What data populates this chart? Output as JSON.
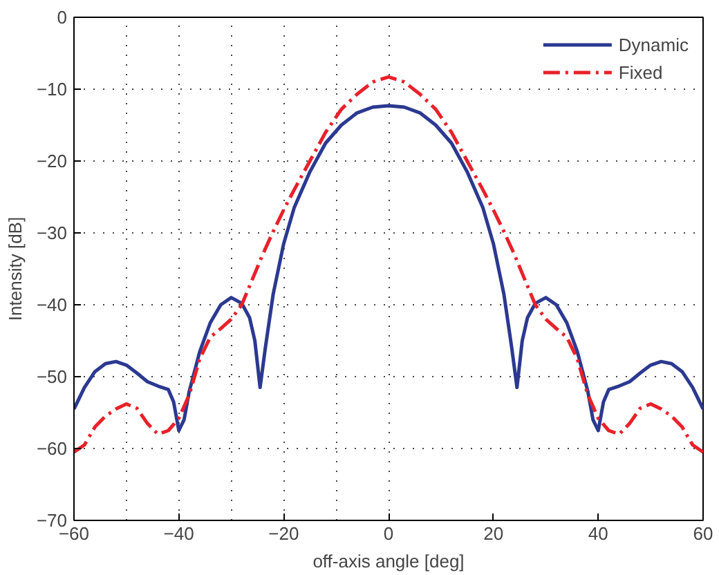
{
  "chart_data": {
    "type": "line",
    "xlabel": "off-axis angle [deg]",
    "ylabel": "Intensity [dB]",
    "xlim": [
      -60,
      60
    ],
    "xticks": [
      -60,
      -40,
      -20,
      0,
      20,
      40,
      60
    ],
    "ylim": [
      -70,
      0
    ],
    "yticks": [
      -70,
      -60,
      -50,
      -40,
      -30,
      -20,
      -10,
      0
    ],
    "grid": true,
    "legend": "top right",
    "marker": "none",
    "series": [
      {
        "name": "Dynamic",
        "color": "#2b3990",
        "line_style": "solid",
        "x": [
          -60,
          -58,
          -56,
          -54,
          -52,
          -50,
          -48,
          -46,
          -44,
          -42,
          -41,
          -40,
          -39,
          -38,
          -36,
          -34,
          -32,
          -30,
          -28,
          -26.5,
          -25.5,
          -24.5,
          -23.5,
          -22,
          -20,
          -18,
          -15,
          -12,
          -9,
          -6,
          -3,
          0,
          3,
          6,
          9,
          12,
          15,
          18,
          20,
          22,
          23.5,
          24.5,
          25.5,
          26.5,
          28,
          30,
          32,
          34,
          36,
          38,
          39,
          40,
          41,
          42,
          44,
          46,
          48,
          50,
          52,
          54,
          56,
          58,
          60
        ],
        "values": [
          -54.5,
          -51.5,
          -49.3,
          -48.2,
          -47.9,
          -48.4,
          -49.5,
          -50.7,
          -51.3,
          -51.8,
          -53.5,
          -57.5,
          -56,
          -52,
          -46.5,
          -42.5,
          -40,
          -39,
          -39.8,
          -41.8,
          -45,
          -51.5,
          -46,
          -38.5,
          -31.5,
          -26.5,
          -21.5,
          -17.5,
          -15,
          -13.3,
          -12.5,
          -12.3,
          -12.5,
          -13.3,
          -15,
          -17.5,
          -21.5,
          -26.5,
          -31.5,
          -38.5,
          -46,
          -51.5,
          -45,
          -41.8,
          -39.8,
          -39,
          -40,
          -42.5,
          -46.5,
          -52,
          -56,
          -57.5,
          -53.5,
          -51.8,
          -51.3,
          -50.7,
          -49.5,
          -48.4,
          -47.9,
          -48.2,
          -49.3,
          -51.5,
          -54.5
        ]
      },
      {
        "name": "Fixed",
        "color": "#e8212a",
        "line_style": "dashdot",
        "x": [
          -60,
          -58,
          -56,
          -54,
          -52,
          -50,
          -48,
          -46,
          -44,
          -42,
          -40,
          -38,
          -36,
          -34,
          -32,
          -30,
          -28,
          -26,
          -24,
          -22,
          -20,
          -18,
          -15,
          -12,
          -9,
          -6,
          -3,
          0,
          3,
          6,
          9,
          12,
          15,
          18,
          20,
          22,
          24,
          26,
          28,
          30,
          32,
          34,
          36,
          38,
          40,
          42,
          44,
          46,
          48,
          50,
          52,
          54,
          56,
          58,
          60
        ],
        "values": [
          -60.5,
          -59.5,
          -57,
          -55.5,
          -54.5,
          -53.8,
          -54.4,
          -56.5,
          -58,
          -57.5,
          -55.8,
          -52.5,
          -47.5,
          -44.5,
          -43.3,
          -42,
          -40,
          -36.5,
          -33,
          -29.8,
          -26.8,
          -24,
          -20,
          -16,
          -12.8,
          -10.7,
          -9,
          -8.3,
          -9,
          -10.7,
          -12.8,
          -16,
          -20,
          -24,
          -26.8,
          -29.8,
          -33,
          -36.5,
          -40,
          -42,
          -43.3,
          -44.5,
          -47.5,
          -52.5,
          -55.8,
          -57.5,
          -58,
          -56.5,
          -54.4,
          -53.8,
          -54.5,
          -55.5,
          -57,
          -59.5,
          -60.5
        ]
      }
    ]
  }
}
